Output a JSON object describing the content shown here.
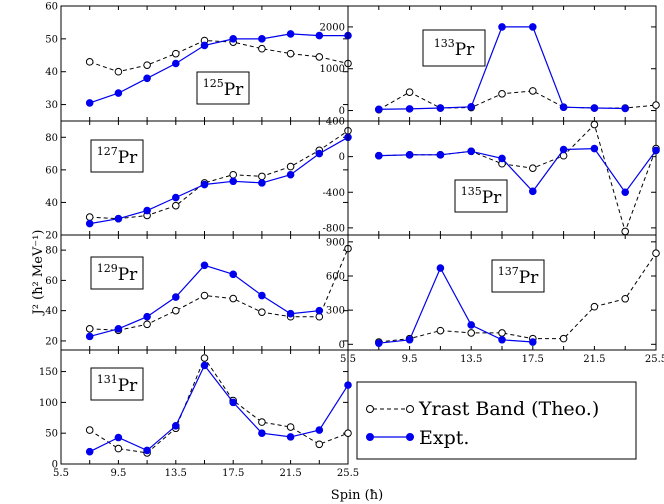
{
  "figure": {
    "ylabel": "J² (ħ² MeV⁻¹)",
    "xlabel": "Spin (ħ)",
    "legend": [
      {
        "label": "Yrast Band (Theo.)",
        "series": "theo"
      },
      {
        "label": "Expt.",
        "series": "expt"
      }
    ],
    "colors": {
      "theo": "#000000",
      "expt": "#0000ee"
    }
  },
  "chart_data": [
    {
      "type": "line",
      "panel": "left-1",
      "isotope_mass": "125",
      "element": "Pr",
      "xlim": [
        5.5,
        25.5
      ],
      "ylim": [
        25,
        60
      ],
      "yticks": [
        30,
        40,
        50,
        60
      ],
      "xticks": [],
      "theo": {
        "x": [
          7.5,
          9.5,
          11.5,
          13.5,
          15.5,
          17.5,
          19.5,
          21.5,
          23.5,
          25.5
        ],
        "y": [
          43,
          40,
          42,
          45.5,
          49.5,
          49,
          47,
          45.5,
          44.5,
          42.5
        ]
      },
      "expt": {
        "x": [
          7.5,
          9.5,
          11.5,
          13.5,
          15.5,
          17.5,
          19.5,
          21.5,
          23.5,
          25.5
        ],
        "y": [
          30.5,
          33.5,
          38,
          42.5,
          48,
          50,
          50,
          51.5,
          51,
          51
        ]
      }
    },
    {
      "type": "line",
      "panel": "left-2",
      "isotope_mass": "127",
      "element": "Pr",
      "xlim": [
        5.5,
        25.5
      ],
      "ylim": [
        20,
        90
      ],
      "yticks": [
        20,
        40,
        60,
        80
      ],
      "xticks": [],
      "theo": {
        "x": [
          7.5,
          9.5,
          11.5,
          13.5,
          15.5,
          17.5,
          19.5,
          21.5,
          23.5,
          25.5
        ],
        "y": [
          31,
          30,
          32,
          38,
          52,
          57,
          56,
          62,
          72,
          84
        ]
      },
      "expt": {
        "x": [
          7.5,
          9.5,
          11.5,
          13.5,
          15.5,
          17.5,
          19.5,
          21.5,
          23.5,
          25.5
        ],
        "y": [
          27,
          30,
          35,
          43,
          51,
          53,
          52,
          57,
          70,
          80
        ]
      }
    },
    {
      "type": "line",
      "panel": "left-3",
      "isotope_mass": "129",
      "element": "Pr",
      "xlim": [
        5.5,
        25.5
      ],
      "ylim": [
        14,
        90
      ],
      "yticks": [
        20,
        40,
        60,
        80
      ],
      "xticks": [],
      "theo": {
        "x": [
          7.5,
          9.5,
          11.5,
          13.5,
          15.5,
          17.5,
          19.5,
          21.5,
          23.5,
          25.5
        ],
        "y": [
          28,
          27,
          31,
          40,
          50,
          48,
          39,
          36,
          36,
          81
        ]
      },
      "expt": {
        "x": [
          7.5,
          9.5,
          11.5,
          13.5,
          15.5,
          17.5,
          19.5,
          21.5,
          23.5
        ],
        "y": [
          23,
          28,
          36,
          49,
          70,
          64,
          50,
          38,
          40
        ]
      }
    },
    {
      "type": "line",
      "panel": "left-4",
      "isotope_mass": "131",
      "element": "Pr",
      "xlim": [
        5.5,
        25.5
      ],
      "ylim": [
        0,
        185
      ],
      "yticks": [
        0,
        50,
        100,
        150
      ],
      "xticks": [
        5.5,
        9.5,
        13.5,
        17.5,
        21.5,
        25.5
      ],
      "theo": {
        "x": [
          7.5,
          9.5,
          11.5,
          13.5,
          15.5,
          17.5,
          19.5,
          21.5,
          23.5,
          25.5
        ],
        "y": [
          55,
          25,
          18,
          58,
          172,
          103,
          68,
          60,
          32,
          50
        ]
      },
      "expt": {
        "x": [
          7.5,
          9.5,
          11.5,
          13.5,
          15.5,
          17.5,
          19.5,
          21.5,
          23.5,
          25.5
        ],
        "y": [
          20,
          43,
          22,
          62,
          160,
          100,
          50,
          44,
          55,
          128
        ]
      }
    },
    {
      "type": "line",
      "panel": "right-1",
      "isotope_mass": "133",
      "element": "Pr",
      "xlim": [
        5.5,
        25.5
      ],
      "ylim": [
        -250,
        2500
      ],
      "yticks": [
        0,
        1000,
        2000
      ],
      "xticks": [],
      "theo": {
        "x": [
          7.5,
          9.5,
          11.5,
          13.5,
          15.5,
          17.5,
          19.5,
          21.5,
          23.5,
          25.5
        ],
        "y": [
          20,
          440,
          60,
          70,
          400,
          470,
          80,
          60,
          60,
          130
        ]
      },
      "expt": {
        "x": [
          7.5,
          9.5,
          11.5,
          13.5,
          15.5,
          17.5,
          19.5,
          21.5,
          23.5
        ],
        "y": [
          30,
          40,
          60,
          90,
          2000,
          2000,
          80,
          60,
          50
        ]
      }
    },
    {
      "type": "line",
      "panel": "right-2",
      "isotope_mass": "135",
      "element": "Pr",
      "xlim": [
        5.5,
        25.5
      ],
      "ylim": [
        -880,
        400
      ],
      "yticks": [
        -800,
        -400,
        0,
        400
      ],
      "xticks": [],
      "theo": {
        "x": [
          7.5,
          9.5,
          11.5,
          13.5,
          15.5,
          17.5,
          19.5,
          21.5,
          23.5,
          25.5
        ],
        "y": [
          10,
          20,
          20,
          60,
          -80,
          -130,
          10,
          360,
          -840,
          90
        ]
      },
      "expt": {
        "x": [
          7.5,
          9.5,
          11.5,
          13.5,
          15.5,
          17.5,
          19.5,
          21.5,
          23.5,
          25.5
        ],
        "y": [
          10,
          20,
          20,
          60,
          -20,
          -390,
          80,
          90,
          -400,
          70
        ]
      }
    },
    {
      "type": "line",
      "panel": "right-3",
      "isotope_mass": "137",
      "element": "Pr",
      "xlim": [
        5.5,
        25.5
      ],
      "ylim": [
        -50,
        960
      ],
      "yticks": [
        0,
        300,
        600,
        900
      ],
      "xticks": [
        5.5,
        9.5,
        13.5,
        17.5,
        21.5,
        25.5
      ],
      "theo": {
        "x": [
          7.5,
          9.5,
          11.5,
          13.5,
          15.5,
          17.5,
          19.5,
          21.5,
          23.5,
          25.5
        ],
        "y": [
          20,
          50,
          120,
          100,
          100,
          50,
          50,
          330,
          400,
          800
        ]
      },
      "expt": {
        "x": [
          7.5,
          9.5,
          11.5,
          13.5,
          15.5,
          17.5
        ],
        "y": [
          10,
          40,
          670,
          170,
          40,
          20
        ]
      }
    }
  ]
}
